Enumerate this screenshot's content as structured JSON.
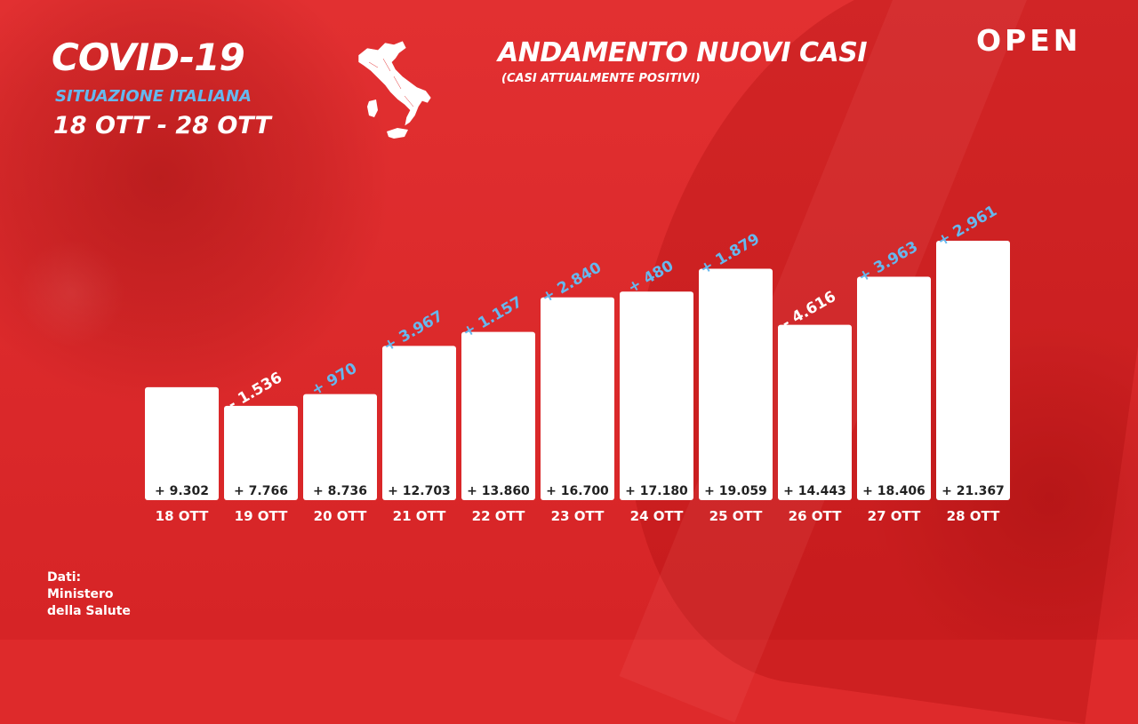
{
  "header": {
    "title": "COVID-19",
    "subtitle": "SITUAZIONE ITALIANA",
    "dates": "18 OTT - 28 OTT",
    "logo": "OPEN"
  },
  "colors": {
    "background": "#de2a2b",
    "bar": "#ffffff",
    "positive_delta": "#66b8ee",
    "negative_delta": "#ffffff",
    "accent": "#66b8ee"
  },
  "map_icon": "italy-map-icon",
  "source": {
    "line1": "Dati:",
    "line2": "Ministero",
    "line3": "della Salute"
  },
  "chart_data": {
    "type": "bar",
    "title": "ANDAMENTO NUOVI CASI",
    "subtitle": "(CASI ATTUALMENTE POSITIVI)",
    "xlabel": "",
    "ylabel": "",
    "ylim": [
      0,
      22000
    ],
    "grid": false,
    "categories": [
      "18 OTT",
      "19 OTT",
      "20 OTT",
      "21 OTT",
      "22 OTT",
      "23 OTT",
      "24 OTT",
      "25 OTT",
      "26 OTT",
      "27 OTT",
      "28 OTT"
    ],
    "values": [
      9302,
      7766,
      8736,
      12703,
      13860,
      16700,
      17180,
      19059,
      14443,
      18406,
      21367
    ],
    "value_labels": [
      "+ 9.302",
      "+ 7.766",
      "+ 8.736",
      "+ 12.703",
      "+ 13.860",
      "+ 16.700",
      "+ 17.180",
      "+ 19.059",
      "+ 14.443",
      "+ 18.406",
      "+ 21.367"
    ],
    "deltas": [
      null,
      -1536,
      970,
      3967,
      1157,
      2840,
      480,
      1879,
      -4616,
      3963,
      2961
    ],
    "delta_labels": [
      "",
      "- 1.536",
      "+ 970",
      "+ 3.967",
      "+ 1.157",
      "+ 2.840",
      "+ 480",
      "+ 1.879",
      "- 4.616",
      "+ 3.963",
      "+ 2.961"
    ]
  }
}
